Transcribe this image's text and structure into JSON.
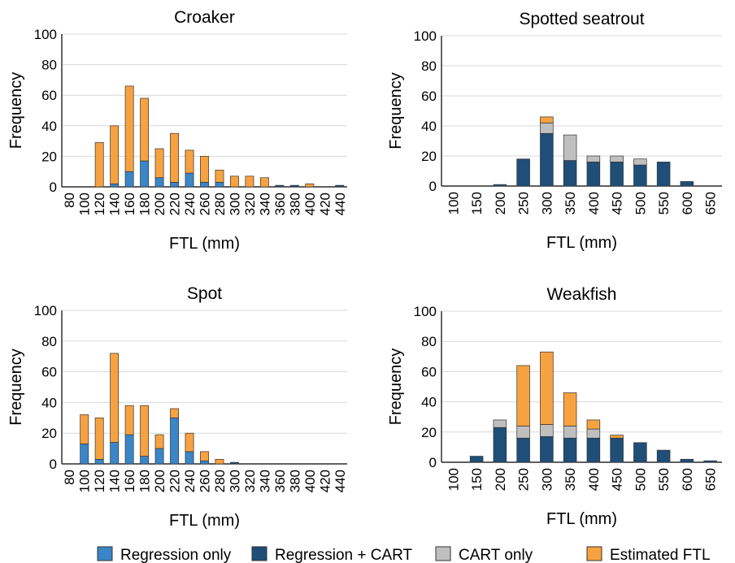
{
  "series_meta": [
    {
      "key": "reg",
      "name": "Regression only",
      "color": "#3a86c8"
    },
    {
      "key": "regcart",
      "name": "Regression + CART",
      "color": "#1f4e79"
    },
    {
      "key": "cart",
      "name": "CART only",
      "color": "#bfbfbf"
    },
    {
      "key": "est",
      "name": "Estimated FTL",
      "color": "#f7a240"
    }
  ],
  "chart_data": [
    {
      "type": "bar",
      "stacked": true,
      "title": "Croaker",
      "xlabel": "FTL (mm)",
      "ylabel": "Frequency",
      "ylim": [
        0,
        100
      ],
      "yticks": [
        0,
        20,
        40,
        60,
        80,
        100
      ],
      "categories": [
        "80",
        "100",
        "120",
        "140",
        "160",
        "180",
        "200",
        "220",
        "240",
        "260",
        "280",
        "300",
        "320",
        "340",
        "360",
        "380",
        "400",
        "420",
        "440"
      ],
      "series": [
        {
          "key": "reg",
          "values": [
            0,
            0,
            0,
            2,
            10,
            17,
            6,
            3,
            9,
            3,
            3,
            0,
            0,
            0,
            0,
            0,
            0,
            0,
            0
          ]
        },
        {
          "key": "regcart",
          "values": [
            0,
            0,
            0,
            0,
            0,
            0,
            0,
            0,
            0,
            0,
            0,
            0,
            0,
            0,
            1,
            1,
            0,
            0,
            1
          ]
        },
        {
          "key": "cart",
          "values": [
            0,
            0,
            0,
            0,
            0,
            0,
            0,
            0,
            0,
            0,
            0,
            0,
            0,
            0,
            0,
            0,
            0,
            0,
            0
          ]
        },
        {
          "key": "est",
          "values": [
            0,
            0,
            29,
            38,
            56,
            41,
            19,
            32,
            15,
            17,
            8,
            7,
            7,
            6,
            0,
            0,
            2,
            0,
            0
          ]
        }
      ],
      "grid": "horizontal"
    },
    {
      "type": "bar",
      "stacked": true,
      "title": "Spotted seatrout",
      "xlabel": "FTL (mm)",
      "ylabel": "Frequency",
      "ylim": [
        0,
        100
      ],
      "yticks": [
        0,
        20,
        40,
        60,
        80,
        100
      ],
      "categories": [
        "100",
        "150",
        "200",
        "250",
        "300",
        "350",
        "400",
        "450",
        "500",
        "550",
        "600",
        "650"
      ],
      "series": [
        {
          "key": "reg",
          "values": [
            0,
            0,
            0,
            0,
            0,
            0,
            0,
            0,
            0,
            0,
            0,
            0
          ]
        },
        {
          "key": "regcart",
          "values": [
            0,
            0,
            1,
            18,
            35,
            17,
            16,
            16,
            14,
            16,
            3,
            0
          ]
        },
        {
          "key": "cart",
          "values": [
            0,
            0,
            0,
            0,
            7,
            17,
            4,
            4,
            4,
            0,
            0,
            0
          ]
        },
        {
          "key": "est",
          "values": [
            0,
            0,
            0,
            0,
            4,
            0,
            0,
            0,
            0,
            0,
            0,
            0
          ]
        }
      ],
      "grid": "horizontal"
    },
    {
      "type": "bar",
      "stacked": true,
      "title": "Spot",
      "xlabel": "FTL (mm)",
      "ylabel": "Frequency",
      "ylim": [
        0,
        100
      ],
      "yticks": [
        0,
        20,
        40,
        60,
        80,
        100
      ],
      "categories": [
        "80",
        "100",
        "120",
        "140",
        "160",
        "180",
        "200",
        "220",
        "240",
        "260",
        "280",
        "300",
        "320",
        "340",
        "360",
        "380",
        "400",
        "420",
        "440"
      ],
      "series": [
        {
          "key": "reg",
          "values": [
            0,
            13,
            3,
            14,
            19,
            5,
            10,
            30,
            8,
            2,
            0,
            0,
            0,
            0,
            0,
            0,
            0,
            0,
            0
          ]
        },
        {
          "key": "regcart",
          "values": [
            0,
            0,
            0,
            0,
            0,
            0,
            0,
            0,
            0,
            0,
            0,
            1,
            0,
            0,
            0,
            0,
            0,
            0,
            0
          ]
        },
        {
          "key": "cart",
          "values": [
            0,
            0,
            0,
            0,
            0,
            0,
            0,
            0,
            0,
            0,
            0,
            0,
            0,
            0,
            0,
            0,
            0,
            0,
            0
          ]
        },
        {
          "key": "est",
          "values": [
            0,
            19,
            27,
            58,
            19,
            33,
            9,
            6,
            12,
            6,
            3,
            0,
            0,
            0,
            0,
            0,
            0,
            0,
            0
          ]
        }
      ],
      "grid": "horizontal"
    },
    {
      "type": "bar",
      "stacked": true,
      "title": "Weakfish",
      "xlabel": "FTL (mm)",
      "ylabel": "Frequency",
      "ylim": [
        0,
        100
      ],
      "yticks": [
        0,
        20,
        40,
        60,
        80,
        100
      ],
      "categories": [
        "100",
        "150",
        "200",
        "250",
        "300",
        "350",
        "400",
        "450",
        "500",
        "550",
        "600",
        "650"
      ],
      "series": [
        {
          "key": "reg",
          "values": [
            0,
            0,
            0,
            0,
            0,
            0,
            0,
            0,
            0,
            0,
            0,
            0
          ]
        },
        {
          "key": "regcart",
          "values": [
            0,
            4,
            23,
            16,
            17,
            16,
            16,
            16,
            13,
            8,
            2,
            1
          ]
        },
        {
          "key": "cart",
          "values": [
            0,
            0,
            5,
            8,
            8,
            8,
            6,
            0,
            0,
            0,
            0,
            0
          ]
        },
        {
          "key": "est",
          "values": [
            0,
            0,
            0,
            40,
            48,
            22,
            6,
            2,
            0,
            0,
            0,
            0
          ]
        }
      ],
      "grid": "horizontal"
    }
  ]
}
